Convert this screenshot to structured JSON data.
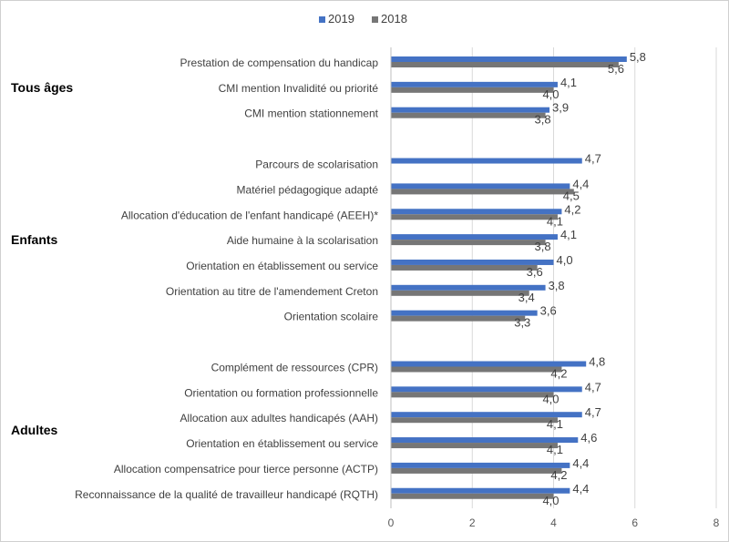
{
  "chart_data": {
    "type": "bar",
    "orientation": "horizontal",
    "grid": true,
    "legend_position": "top-center",
    "xlim": [
      0,
      8
    ],
    "x_ticks": [
      "0",
      "2",
      "4",
      "6",
      "8"
    ],
    "series": [
      {
        "name": "2019",
        "color": "#4472C4"
      },
      {
        "name": "2018",
        "color": "#767676"
      }
    ],
    "groups": [
      {
        "label": "Tous âges",
        "items": [
          {
            "category": "Prestation de compensation du handicap",
            "v2019": 5.8,
            "v2018": 5.6,
            "l2019": "5,8",
            "l2018": "5,6"
          },
          {
            "category": "CMI mention Invalidité ou priorité",
            "v2019": 4.1,
            "v2018": 4.0,
            "l2019": "4,1",
            "l2018": "4,0"
          },
          {
            "category": "CMI mention stationnement",
            "v2019": 3.9,
            "v2018": 3.8,
            "l2019": "3,9",
            "l2018": "3,8"
          }
        ]
      },
      {
        "label": "Enfants",
        "items": [
          {
            "category": "Parcours de scolarisation",
            "v2019": 4.7,
            "v2018": null,
            "l2019": "4,7",
            "l2018": ""
          },
          {
            "category": "Matériel pédagogique adapté",
            "v2019": 4.4,
            "v2018": 4.5,
            "l2019": "4,4",
            "l2018": "4,5"
          },
          {
            "category": "Allocation d'éducation de l'enfant handicapé (AEEH)*",
            "v2019": 4.2,
            "v2018": 4.1,
            "l2019": "4,2",
            "l2018": "4,1"
          },
          {
            "category": "Aide humaine à la scolarisation",
            "v2019": 4.1,
            "v2018": 3.8,
            "l2019": "4,1",
            "l2018": "3,8"
          },
          {
            "category": "Orientation en établissement ou service",
            "v2019": 4.0,
            "v2018": 3.6,
            "l2019": "4,0",
            "l2018": "3,6"
          },
          {
            "category": "Orientation au titre de l'amendement Creton",
            "v2019": 3.8,
            "v2018": 3.4,
            "l2019": "3,8",
            "l2018": "3,4"
          },
          {
            "category": "Orientation scolaire",
            "v2019": 3.6,
            "v2018": 3.3,
            "l2019": "3,6",
            "l2018": "3,3"
          }
        ]
      },
      {
        "label": "Adultes",
        "items": [
          {
            "category": "Complément de ressources (CPR)",
            "v2019": 4.8,
            "v2018": 4.2,
            "l2019": "4,8",
            "l2018": "4,2"
          },
          {
            "category": "Orientation ou formation professionnelle",
            "v2019": 4.7,
            "v2018": 4.0,
            "l2019": "4,7",
            "l2018": "4,0"
          },
          {
            "category": "Allocation aux adultes handicapés (AAH)",
            "v2019": 4.7,
            "v2018": 4.1,
            "l2019": "4,7",
            "l2018": "4,1"
          },
          {
            "category": "Orientation en établissement ou service",
            "v2019": 4.6,
            "v2018": 4.1,
            "l2019": "4,6",
            "l2018": "4,1"
          },
          {
            "category": "Allocation compensatrice pour tierce personne (ACTP)",
            "v2019": 4.4,
            "v2018": 4.2,
            "l2019": "4,4",
            "l2018": "4,2"
          },
          {
            "category": "Reconnaissance de la qualité de travailleur handicapé (RQTH)",
            "v2019": 4.4,
            "v2018": 4.0,
            "l2019": "4,4",
            "l2018": "4,0"
          }
        ]
      }
    ]
  }
}
